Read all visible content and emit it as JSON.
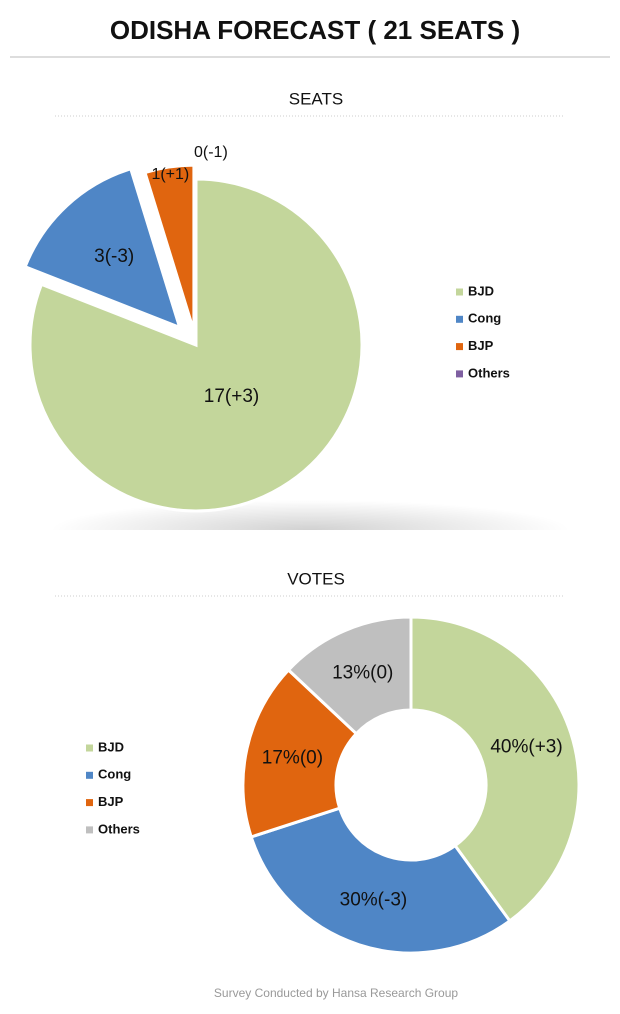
{
  "title": "ODISHA FORECAST ( 21 SEATS )",
  "footer": "Survey Conducted by Hansa Research Group",
  "chart_data": [
    {
      "type": "pie",
      "title": "SEATS",
      "categories": [
        "BJD",
        "Cong",
        "BJP",
        "Others"
      ],
      "values": [
        17,
        3,
        1,
        0
      ],
      "value_labels": [
        "17(+3)",
        "3(-3)",
        "1(+1)",
        "0(-1)"
      ],
      "colors": [
        "#c3d69b",
        "#4f86c6",
        "#e0650f",
        "#7e5fa1"
      ]
    },
    {
      "type": "donut",
      "title": "VOTES",
      "categories": [
        "BJD",
        "Cong",
        "BJP",
        "Others"
      ],
      "values": [
        40,
        30,
        17,
        13
      ],
      "value_labels": [
        "40%(+3)",
        "30%(-3)",
        "17%(0)",
        "13%(0)"
      ],
      "colors": [
        "#c3d69b",
        "#4f86c6",
        "#e0650f",
        "#bfbfbf"
      ]
    }
  ]
}
